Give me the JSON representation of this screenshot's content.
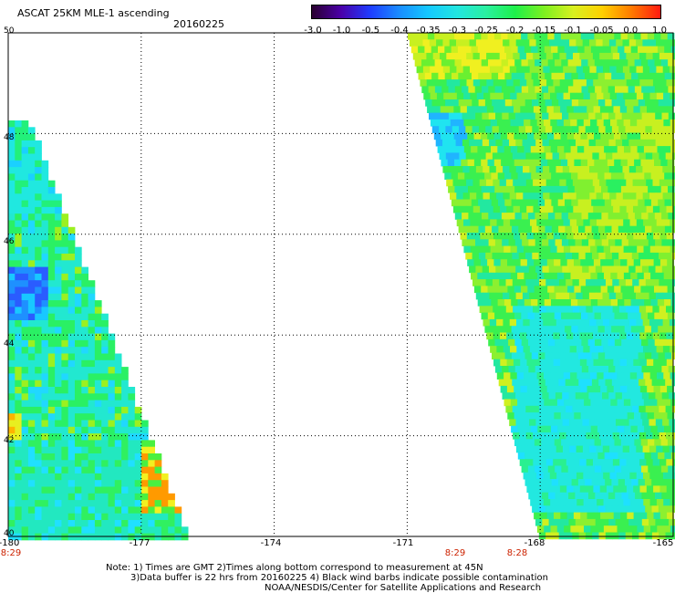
{
  "header": {
    "title": "ASCAT 25KM MLE-1 ascending",
    "date": "20160225"
  },
  "colorbar": {
    "labels": [
      "-3.0",
      "-1.0",
      "-0.5",
      "-0.4",
      "-0.35",
      "-0.3",
      "-0.25",
      "-0.2",
      "-0.15",
      "-0.1",
      "-0.05",
      "0.0",
      "1.0"
    ],
    "colors": [
      "#2b0030",
      "#4a00a8",
      "#1f3cff",
      "#1a8cff",
      "#14c8ff",
      "#22e6e0",
      "#2af0a0",
      "#1ef04a",
      "#7ef020",
      "#d8f020",
      "#ffd000",
      "#ff7a00",
      "#ff1a10"
    ]
  },
  "map": {
    "lat_labels": [
      "50",
      "48",
      "46",
      "44",
      "42",
      "40"
    ],
    "lon_labels": [
      "-180",
      "-177",
      "-174",
      "-171",
      "-168",
      "-165"
    ],
    "lat_range": [
      40,
      50
    ],
    "lon_range": [
      -180,
      -165
    ],
    "grid": "dotted",
    "time_labels": [
      {
        "lon": -180.0,
        "text": "8:29"
      },
      {
        "lon": -170.0,
        "text": "8:29"
      },
      {
        "lon": -168.6,
        "text": "8:28"
      }
    ]
  },
  "notes": {
    "line1": "Note: 1) Times are GMT 2)Times along bottom correspond to measurement at 45N",
    "line2": "3)Data buffer is 22 hrs from 20160225 4) Black wind barbs indicate possible contamination",
    "line3": "NOAA/NESDIS/Center for Satellite Applications and Research"
  }
}
